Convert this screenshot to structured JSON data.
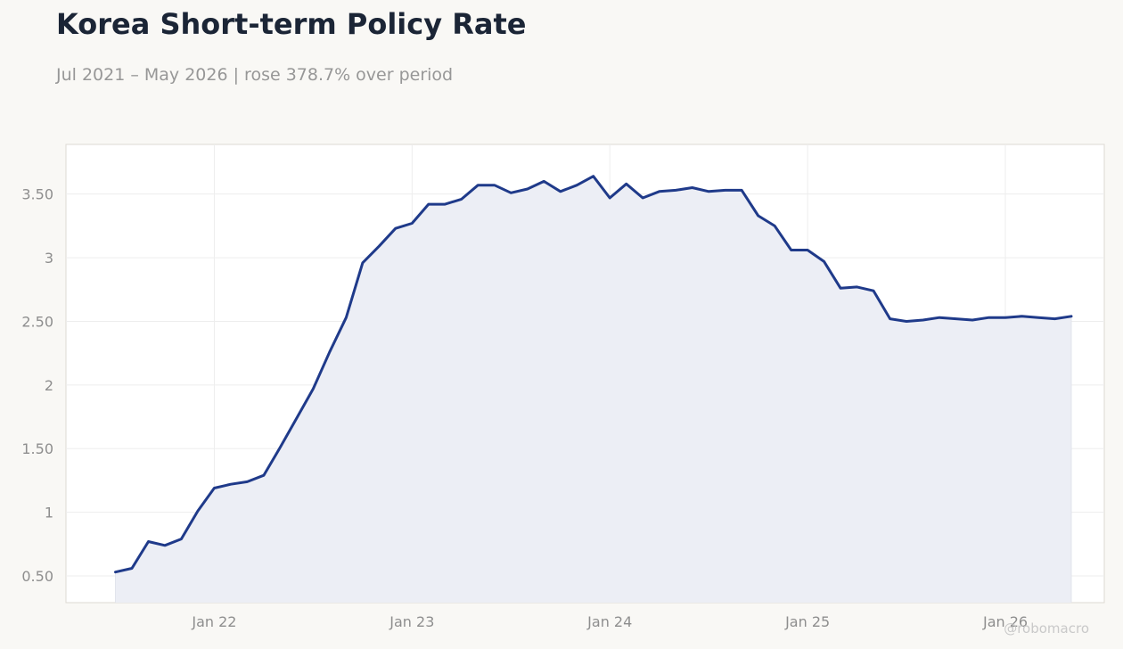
{
  "header": {
    "title": "Korea Short-term Policy Rate",
    "subtitle": "Jul 2021 – May 2026 | rose 378.7% over period"
  },
  "watermark": "@robomacro",
  "colors": {
    "line": "#1f3a8a",
    "area": "#eceef5",
    "plot_bg": "#ffffff",
    "page_bg": "#f9f8f5"
  },
  "chart_data": {
    "type": "area",
    "title": "Korea Short-term Policy Rate",
    "subtitle": "Jul 2021 – May 2026 | rose 378.7% over period",
    "xlabel": "",
    "ylabel": "",
    "grid": true,
    "ylim": [
      0.29,
      3.89
    ],
    "yticks": [
      {
        "value": 0.5,
        "label": "0.50"
      },
      {
        "value": 1,
        "label": "1"
      },
      {
        "value": 1.5,
        "label": "1.50"
      },
      {
        "value": 2,
        "label": "2"
      },
      {
        "value": 2.5,
        "label": "2.50"
      },
      {
        "value": 3,
        "label": "3"
      },
      {
        "value": 3.5,
        "label": "3.50"
      }
    ],
    "xticks": [
      {
        "value": "2022-01",
        "label": "Jan 22"
      },
      {
        "value": "2023-01",
        "label": "Jan 23"
      },
      {
        "value": "2024-01",
        "label": "Jan 24"
      },
      {
        "value": "2025-01",
        "label": "Jan 25"
      },
      {
        "value": "2026-01",
        "label": "Jan 26"
      }
    ],
    "xlim": [
      "2021-04",
      "2026-07"
    ],
    "series": [
      {
        "x": [
          "2021-07",
          "2021-08",
          "2021-09",
          "2021-10",
          "2021-11",
          "2021-12",
          "2022-01",
          "2022-02",
          "2022-03",
          "2022-04",
          "2022-05",
          "2022-06",
          "2022-07",
          "2022-08",
          "2022-09",
          "2022-10",
          "2022-11",
          "2022-12",
          "2023-01",
          "2023-02",
          "2023-03",
          "2023-04",
          "2023-05",
          "2023-06",
          "2023-07",
          "2023-08",
          "2023-09",
          "2023-10",
          "2023-11",
          "2023-12",
          "2024-01",
          "2024-02",
          "2024-03",
          "2024-04",
          "2024-05",
          "2024-06",
          "2024-07",
          "2024-08",
          "2024-09",
          "2024-10",
          "2024-11",
          "2024-12",
          "2025-01",
          "2025-02",
          "2025-03",
          "2025-04",
          "2025-05",
          "2025-06",
          "2025-07",
          "2025-08",
          "2025-09",
          "2025-10",
          "2025-11",
          "2025-12",
          "2026-01",
          "2026-02",
          "2026-03",
          "2026-04",
          "2026-05"
        ],
        "values": [
          0.53,
          0.56,
          0.77,
          0.74,
          0.79,
          1.01,
          1.19,
          1.22,
          1.24,
          1.29,
          1.51,
          1.74,
          1.97,
          2.26,
          2.53,
          2.96,
          3.09,
          3.23,
          3.27,
          3.42,
          3.42,
          3.46,
          3.57,
          3.57,
          3.51,
          3.54,
          3.6,
          3.52,
          3.57,
          3.64,
          3.47,
          3.58,
          3.47,
          3.52,
          3.53,
          3.55,
          3.52,
          3.53,
          3.53,
          3.33,
          3.25,
          3.06,
          3.06,
          2.97,
          2.76,
          2.77,
          2.74,
          2.52,
          2.5,
          2.51,
          2.53,
          2.52,
          2.51,
          2.53,
          2.53,
          2.54,
          2.53,
          2.52,
          2.54
        ]
      }
    ]
  }
}
